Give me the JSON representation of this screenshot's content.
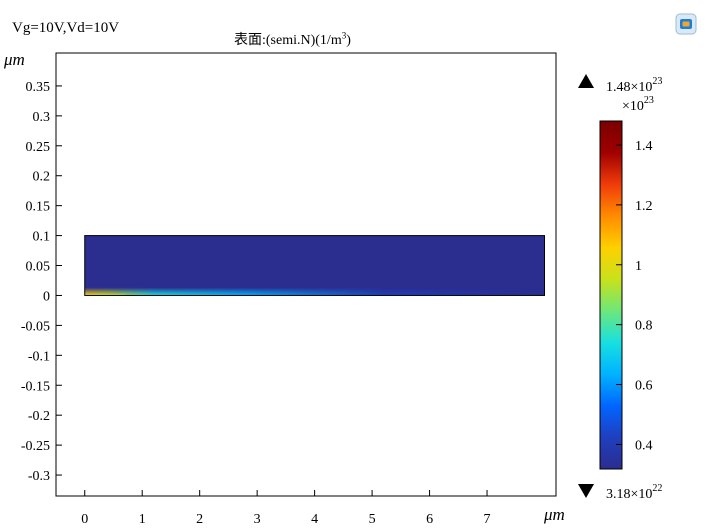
{
  "header": {
    "params": "Vg=10V,Vd=10V",
    "title_main": "表面:(semi.N)(1/m",
    "title_sup": "3",
    "title_end": ")"
  },
  "icons": {
    "logo": "comsol-app-icon"
  },
  "chart_data": {
    "type": "heatmap",
    "xlabel": "μm",
    "ylabel": "μm",
    "xlim": [
      -0.5,
      8.2
    ],
    "ylim": [
      -0.335,
      0.405
    ],
    "xticks": [
      0,
      1,
      2,
      3,
      4,
      5,
      6,
      7
    ],
    "yticks": [
      0.35,
      0.3,
      0.25,
      0.2,
      0.15,
      0.1,
      0.05,
      0,
      -0.05,
      -0.1,
      -0.15,
      -0.2,
      -0.25,
      -0.3
    ],
    "ytick_labels": [
      "0.35",
      "0.3",
      "0.25",
      "0.2",
      "0.15",
      "0.1",
      "0.05",
      "0",
      "-0.05",
      "-0.1",
      "-0.15",
      "-0.2",
      "-0.25",
      "-0.3"
    ],
    "domain": {
      "x": [
        0,
        8
      ],
      "y": [
        0,
        0.1
      ]
    },
    "field": {
      "min": 3.18e+22,
      "max": 1.48e+23,
      "channel_peak": 1.48e+23,
      "background": 3.3e+22
    },
    "colorbar": {
      "max_label": "1.48×10",
      "max_exp": "23",
      "scale_label": "×10",
      "scale_exp": "23",
      "min_label": "3.18×10",
      "min_exp": "22",
      "ticks": [
        1.4,
        1.2,
        1,
        0.8,
        0.6,
        0.4
      ],
      "tick_labels": [
        "1.4",
        "1.2",
        "1",
        "0.8",
        "0.6",
        "0.4"
      ],
      "range": [
        0.318,
        1.48
      ],
      "colors": [
        "#2b2d8f",
        "#1f3fbf",
        "#0066ff",
        "#00b3ff",
        "#18e0e0",
        "#6ee77a",
        "#c8e11c",
        "#ffd000",
        "#ff8c00",
        "#f03c0a",
        "#a00000",
        "#7a0000"
      ]
    }
  }
}
